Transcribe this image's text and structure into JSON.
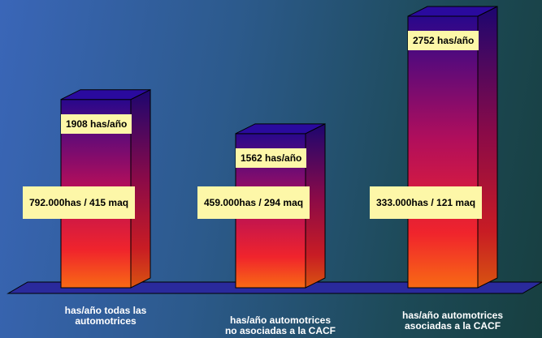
{
  "chart_data": {
    "type": "bar",
    "categories": [
      "has/año todas las\nautomotrices",
      "has/año automotrices\nno  asociadas a la CACF",
      "has/año automotrices\nasociadas a la CACF"
    ],
    "values": [
      1908,
      1562,
      2752
    ],
    "value_labels": [
      "1908 has/año",
      "1562 has/año",
      "2752 has/año"
    ],
    "detail_labels": [
      "792.000has / 415 maq",
      "459.000has / 294 maq",
      "333.000has / 121 maq"
    ],
    "ylim": [
      0,
      2752
    ],
    "grid": false,
    "legend": "none"
  }
}
